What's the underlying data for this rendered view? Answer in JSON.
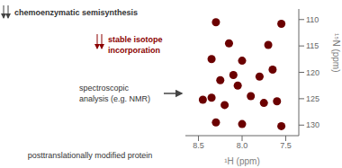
{
  "chart_data": {
    "type": "scatter",
    "x_label": "¹H (ppm)",
    "y_label": "¹⁵N (ppm)",
    "color": "#6B0000",
    "grid": false,
    "x": [
      8.3,
      7.55,
      8.15,
      7.7,
      8.35,
      8.0,
      7.65,
      8.1,
      7.8,
      8.25,
      8.05,
      7.9,
      8.35,
      8.45,
      7.6,
      7.75,
      8.2,
      8.3,
      8.0,
      7.55
    ],
    "values": [
      110.5,
      110.8,
      114.5,
      114.8,
      117.5,
      117.8,
      119.5,
      120.5,
      120.8,
      121.5,
      122.5,
      124.5,
      124.8,
      125.2,
      125.5,
      125.8,
      126.2,
      129.5,
      129.8,
      130.2
    ],
    "xlim": [
      8.65,
      7.35
    ],
    "ylim": [
      132,
      108
    ],
    "xticks": [
      8.5,
      {
        "value": 8.0,
        "label": "8.0"
      },
      7.5
    ],
    "yticks": [
      110,
      115,
      120,
      125,
      130
    ],
    "annotations": [
      {
        "text": "chemoenzymatic semisynthesis",
        "color": "#333333"
      },
      {
        "text": "stable isotope\nincorporation",
        "color": "#8B0000"
      },
      {
        "text": "spectroscopic\nanalysis (e.g. NMR)",
        "color": "#333333"
      },
      {
        "text": "posttranslationally modified protein",
        "color": "#333333"
      }
    ]
  }
}
